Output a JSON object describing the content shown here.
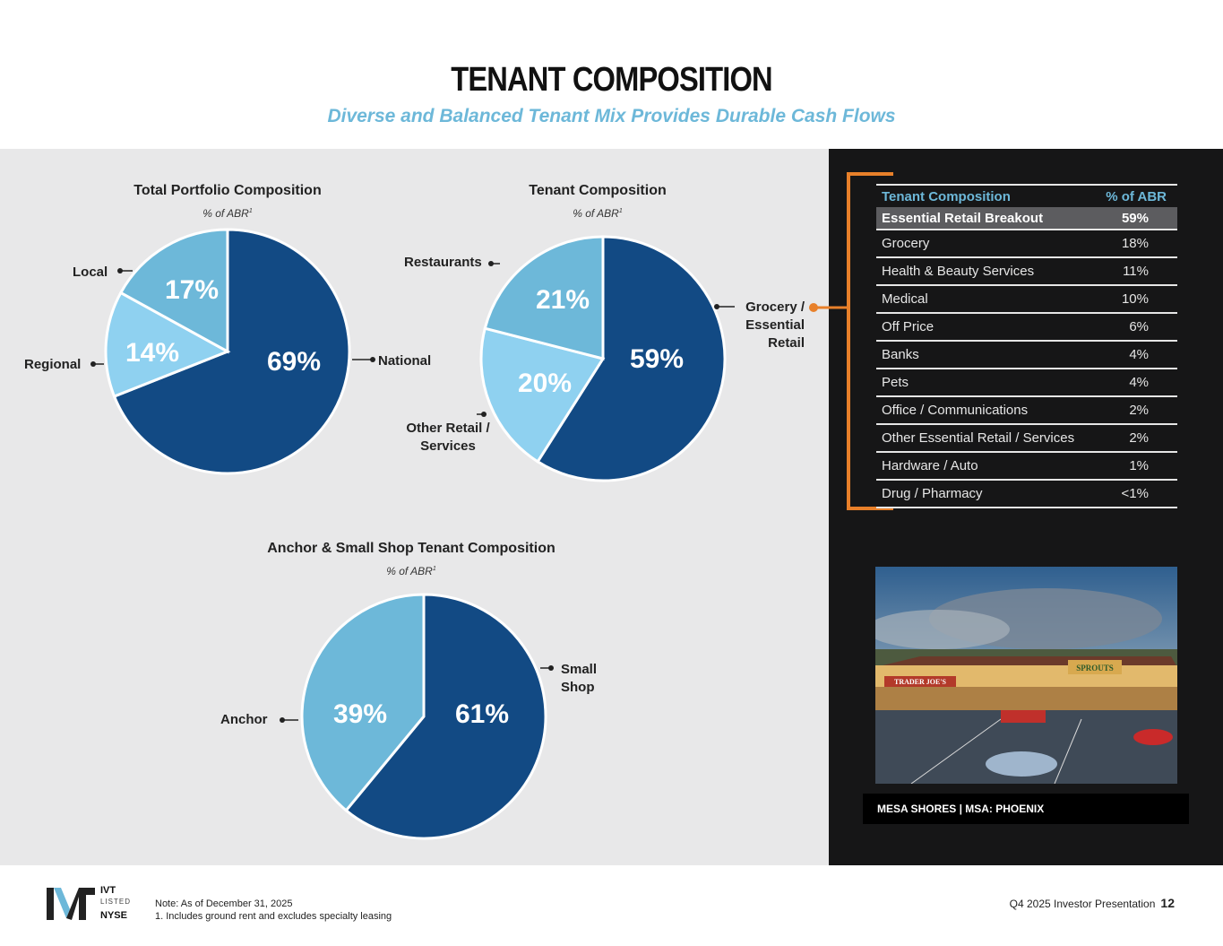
{
  "header": {
    "title": "TENANT COMPOSITION",
    "subtitle": "Diverse and Balanced Tenant Mix Provides Durable Cash Flows"
  },
  "colors": {
    "dark_blue": "#124a84",
    "mid_blue": "#6db8d9",
    "light_blue": "#8fd1f0",
    "accent_orange": "#e8802a"
  },
  "chart_data": [
    {
      "type": "pie",
      "title": "Total Portfolio Composition",
      "subtitle": "% of ABR",
      "footnote_mark": "1",
      "slices": [
        {
          "name": "National",
          "value": 69,
          "label": "69%",
          "color": "#124a84"
        },
        {
          "name": "Regional",
          "value": 14,
          "label": "14%",
          "color": "#8fd1f0"
        },
        {
          "name": "Local",
          "value": 17,
          "label": "17%",
          "color": "#6db8d9"
        }
      ]
    },
    {
      "type": "pie",
      "title": "Tenant Composition",
      "subtitle": "% of ABR",
      "footnote_mark": "1",
      "slices": [
        {
          "name": "Grocery / Essential Retail",
          "name_lines": [
            "Grocery /",
            "Essential",
            "Retail"
          ],
          "value": 59,
          "label": "59%",
          "color": "#124a84"
        },
        {
          "name": "Other Retail / Services",
          "name_lines": [
            "Other Retail /",
            "Services"
          ],
          "value": 20,
          "label": "20%",
          "color": "#8fd1f0"
        },
        {
          "name": "Restaurants",
          "value": 21,
          "label": "21%",
          "color": "#6db8d9"
        }
      ]
    },
    {
      "type": "pie",
      "title": "Anchor & Small Shop Tenant Composition",
      "subtitle": "% of ABR",
      "footnote_mark": "1",
      "slices": [
        {
          "name": "Small Shop",
          "name_lines": [
            "Small",
            "Shop"
          ],
          "value": 61,
          "label": "61%",
          "color": "#124a84"
        },
        {
          "name": "Anchor",
          "value": 39,
          "label": "39%",
          "color": "#6db8d9"
        }
      ]
    },
    {
      "type": "table",
      "columns": [
        "Tenant Composition",
        "% of ABR"
      ],
      "subheader": {
        "label": "Essential Retail Breakout",
        "value": "59%"
      },
      "rows": [
        {
          "label": "Grocery",
          "value": "18%"
        },
        {
          "label": "Health & Beauty Services",
          "value": "11%"
        },
        {
          "label": "Medical",
          "value": "10%"
        },
        {
          "label": "Off Price",
          "value": "6%"
        },
        {
          "label": "Banks",
          "value": "4%"
        },
        {
          "label": "Pets",
          "value": "4%"
        },
        {
          "label": "Office / Communications",
          "value": "2%"
        },
        {
          "label": "Other Essential Retail / Services",
          "value": "2%"
        },
        {
          "label": "Hardware / Auto",
          "value": "1%"
        },
        {
          "label": "Drug / Pharmacy",
          "value": "<1%"
        }
      ]
    }
  ],
  "photo": {
    "signs": [
      "TRADER JOE'S",
      "SPROUTS"
    ],
    "caption": "MESA SHORES  | MSA: PHOENIX"
  },
  "footer": {
    "logo_mark": "IVT",
    "logo_line1": "IVT",
    "logo_line2": "LISTED",
    "logo_line3": "NYSE",
    "note": "Note: As of December 31, 2025",
    "footnote": "1.  Includes ground rent and excludes specialty leasing",
    "presentation": "Q4 2025 Investor Presentation",
    "page": "12"
  }
}
